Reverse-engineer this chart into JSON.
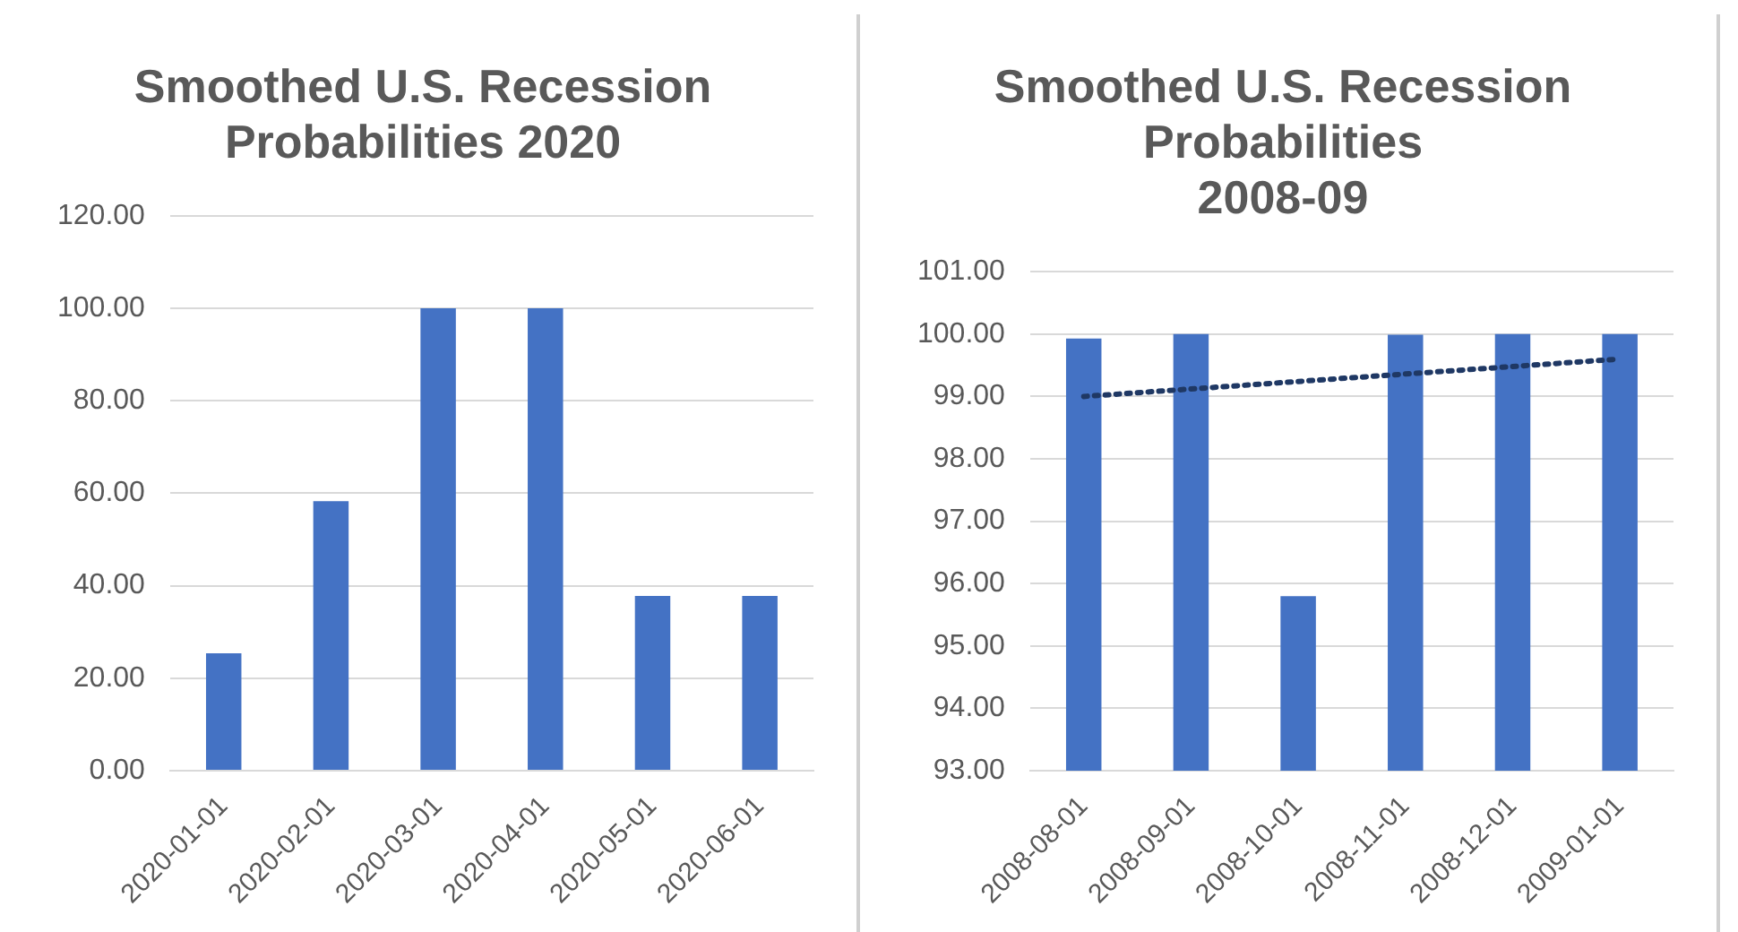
{
  "chart_data": [
    {
      "type": "bar",
      "title": "Smoothed U.S. Recession\nProbabilities 2020",
      "categories": [
        "2020-01-01",
        "2020-02-01",
        "2020-03-01",
        "2020-04-01",
        "2020-05-01",
        "2020-06-01"
      ],
      "series": [
        {
          "color": "#4472c4",
          "values": [
            25.4,
            58.3,
            100,
            100,
            37.8,
            37.8
          ]
        }
      ],
      "ylim": [
        0,
        120
      ],
      "yticks": [
        {
          "value": 0,
          "label": "0.00"
        },
        {
          "value": 20,
          "label": "20.00"
        },
        {
          "value": 40,
          "label": "40.00"
        },
        {
          "value": 60,
          "label": "60.00"
        },
        {
          "value": 80,
          "label": "80.00"
        },
        {
          "value": 100,
          "label": "100.00"
        },
        {
          "value": 120,
          "label": "120.00"
        }
      ],
      "grid": "y",
      "legend": false
    },
    {
      "type": "bar",
      "title": "Smoothed U.S. Recession\nProbabilities\n2008-09",
      "categories": [
        "2008-08-01",
        "2008-09-01",
        "2008-10-01",
        "2008-11-01",
        "2008-12-01",
        "2009-01-01"
      ],
      "series": [
        {
          "color": "#4472c4",
          "values": [
            99.93,
            100,
            95.8,
            99.99,
            100,
            100
          ]
        },
        {
          "type": "line",
          "color": "#1f3864",
          "line_style": "dotted",
          "marker": "none",
          "values": [
            99.0,
            99.12,
            99.24,
            99.36,
            99.48,
            99.6
          ]
        }
      ],
      "ylim": [
        93,
        101
      ],
      "yticks": [
        {
          "value": 93,
          "label": "93.00"
        },
        {
          "value": 94,
          "label": "94.00"
        },
        {
          "value": 95,
          "label": "95.00"
        },
        {
          "value": 96,
          "label": "96.00"
        },
        {
          "value": 97,
          "label": "97.00"
        },
        {
          "value": 98,
          "label": "98.00"
        },
        {
          "value": 99,
          "label": "99.00"
        },
        {
          "value": 100,
          "label": "100.00"
        },
        {
          "value": 101,
          "label": "101.00"
        }
      ],
      "grid": "y",
      "legend": false
    }
  ]
}
